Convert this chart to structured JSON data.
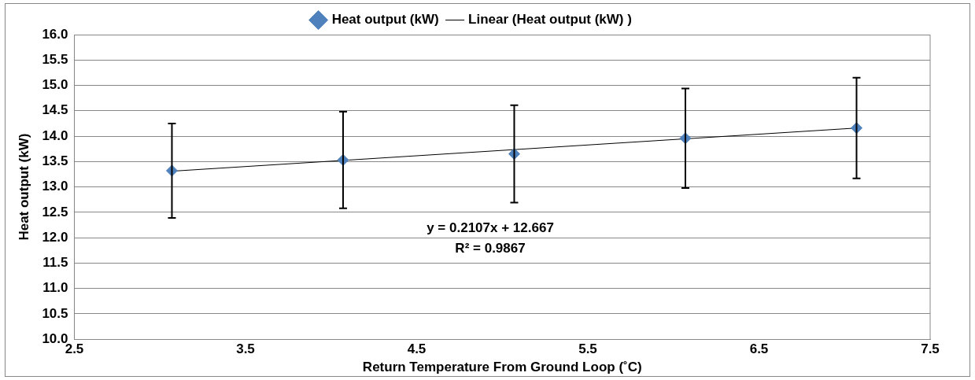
{
  "chart_data": {
    "type": "scatter",
    "xlabel": "Return Temperature From Ground Loop (˚C)",
    "ylabel": "Heat output (kW)",
    "x": [
      3.07,
      4.07,
      5.07,
      6.07,
      7.07
    ],
    "series": [
      {
        "name": "Heat output (kW)",
        "type": "scatter",
        "color": "#4f81bd",
        "marker": "diamond",
        "values": [
          13.32,
          13.53,
          13.65,
          13.96,
          14.16
        ],
        "errors": [
          0.93,
          0.95,
          0.96,
          0.98,
          0.99
        ]
      },
      {
        "name": "Linear (Heat output (kW) )",
        "type": "line",
        "color": "#000000",
        "marker": "none",
        "line_style": "solid",
        "x": [
          3.07,
          7.07
        ],
        "values": [
          13.31,
          14.16
        ]
      }
    ],
    "xlim": [
      2.5,
      7.5
    ],
    "xticks": [
      2.5,
      3.5,
      4.5,
      5.5,
      6.5,
      7.5
    ],
    "ylim": [
      10,
      16
    ],
    "yticks": [
      {
        "value": 10,
        "label": "10.0"
      },
      {
        "value": 10.5,
        "label": "10.5"
      },
      {
        "value": 11,
        "label": "11.0"
      },
      {
        "value": 11.5,
        "label": "11.5"
      },
      {
        "value": 12,
        "label": "12.0"
      },
      {
        "value": 12.5,
        "label": "12.5"
      },
      {
        "value": 13,
        "label": "13.0"
      },
      {
        "value": 13.5,
        "label": "13.5"
      },
      {
        "value": 14,
        "label": "14.0"
      },
      {
        "value": 14.5,
        "label": "14.5"
      },
      {
        "value": 15,
        "label": "15.0"
      },
      {
        "value": 15.5,
        "label": "15.5"
      },
      {
        "value": 16,
        "label": "16.0"
      }
    ],
    "annotations": [
      "y = 0.2107x + 12.667",
      "R² = 0.9867"
    ],
    "grid": "y",
    "legend": "top"
  }
}
